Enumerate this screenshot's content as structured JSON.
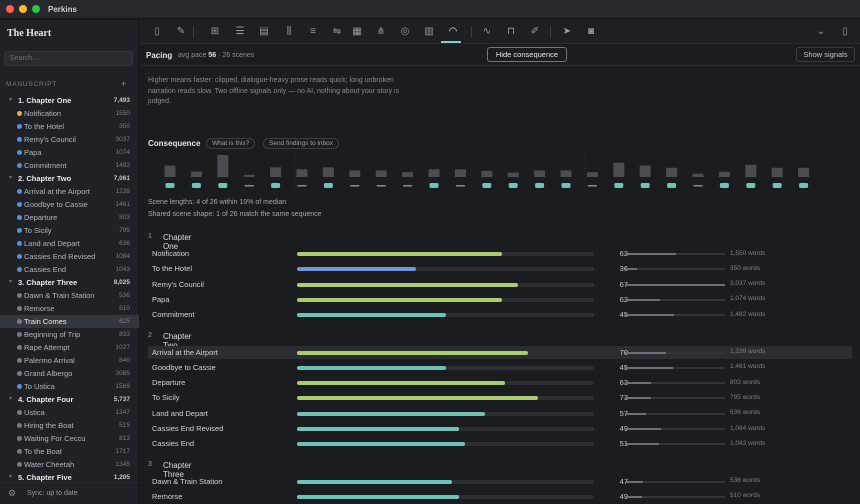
{
  "app": {
    "title": "Perkins"
  },
  "sidebar": {
    "book_title": "The Heart",
    "search_placeholder": "Search…",
    "section_label": "MANUSCRIPT",
    "add_label": "+",
    "footer": {
      "sync_text": "Sync: up to date"
    },
    "items": [
      {
        "type": "chapter",
        "label": "1. Chapter One",
        "count": "7,493"
      },
      {
        "type": "scene",
        "label": "Notification",
        "count": "1550",
        "dot": "#e2b34d"
      },
      {
        "type": "scene",
        "label": "To the Hotel",
        "count": "350",
        "dot": "#5b8fd6"
      },
      {
        "type": "scene",
        "label": "Remy's Council",
        "count": "3037",
        "dot": "#5b8fd6"
      },
      {
        "type": "scene",
        "label": "Papa",
        "count": "1074",
        "dot": "#5b8fd6"
      },
      {
        "type": "scene",
        "label": "Commitment",
        "count": "1482",
        "dot": "#5b8fd6"
      },
      {
        "type": "chapter",
        "label": "2. Chapter Two",
        "count": "7,061"
      },
      {
        "type": "scene",
        "label": "Arrival at the Airport",
        "count": "1239",
        "dot": "#5b8fd6"
      },
      {
        "type": "scene",
        "label": "Goodbye to Cassie",
        "count": "1461",
        "dot": "#5b8fd6"
      },
      {
        "type": "scene",
        "label": "Departure",
        "count": "803",
        "dot": "#5b8fd6"
      },
      {
        "type": "scene",
        "label": "To Sicily",
        "count": "795",
        "dot": "#5b8fd6"
      },
      {
        "type": "scene",
        "label": "Land and Depart",
        "count": "636",
        "dot": "#5b8fd6"
      },
      {
        "type": "scene",
        "label": "Cassies End Revised",
        "count": "1084",
        "dot": "#5b8fd6"
      },
      {
        "type": "scene",
        "label": "Cassies End",
        "count": "1043",
        "dot": "#5b8fd6"
      },
      {
        "type": "chapter",
        "label": "3. Chapter Three",
        "count": "8,025"
      },
      {
        "type": "scene",
        "label": "Dawn & Train Station",
        "count": "536",
        "dot": "#7a7b82"
      },
      {
        "type": "scene",
        "label": "Remorse",
        "count": "510",
        "dot": "#7a7b82"
      },
      {
        "type": "scene",
        "label": "Train Comes",
        "count": "625",
        "dot": "#7a7b82",
        "selected": true
      },
      {
        "type": "scene",
        "label": "Beginning of Trip",
        "count": "833",
        "dot": "#7a7b82"
      },
      {
        "type": "scene",
        "label": "Rape Attempt",
        "count": "1027",
        "dot": "#7a7b82"
      },
      {
        "type": "scene",
        "label": "Palermo Arrival",
        "count": "840",
        "dot": "#7a7b82"
      },
      {
        "type": "scene",
        "label": "Grand Albergo",
        "count": "2085",
        "dot": "#7a7b82"
      },
      {
        "type": "scene",
        "label": "To Ustica",
        "count": "1569",
        "dot": "#5b8fd6"
      },
      {
        "type": "chapter",
        "label": "4. Chapter Four",
        "count": "5,737"
      },
      {
        "type": "scene",
        "label": "Ustica",
        "count": "1347",
        "dot": "#7a7b82"
      },
      {
        "type": "scene",
        "label": "Hiring the Boat",
        "count": "515",
        "dot": "#7a7b82"
      },
      {
        "type": "scene",
        "label": "Waiting For Ceccu",
        "count": "813",
        "dot": "#7a7b82"
      },
      {
        "type": "scene",
        "label": "To the Boat",
        "count": "1717",
        "dot": "#7a7b82"
      },
      {
        "type": "scene",
        "label": "Water Cheetah",
        "count": "1345",
        "dot": "#7a7b82"
      },
      {
        "type": "chapter",
        "label": "5. Chapter Five",
        "count": "1,205"
      }
    ]
  },
  "toolbar": {
    "icons": [
      "sidebar-toggle-icon",
      "pen-icon",
      "grid-icon",
      "outline-list-icon",
      "document-icon",
      "library-icon",
      "align-icon",
      "balance-icon",
      "table-icon",
      "hierarchy-icon",
      "target-icon",
      "bar-chart-icon",
      "pacing-gauge-icon",
      "pulse-icon",
      "inbox-icon",
      "feather-icon",
      "send-icon",
      "camera-icon",
      "chevron-down-icon",
      "panel-right-icon"
    ]
  },
  "subbar": {
    "title": "Pacing",
    "meta_prefix": "avg pace",
    "avg_pace": "56",
    "meta_suffix": "· 26 scenes",
    "hide_button": "Hide consequence",
    "show_button": "Show signals"
  },
  "main": {
    "description": "Higher means faster: clipped, dialogue-heavy prose reads quick; long unbroken narration reads slow. Two offline signals only — no AI, nothing about your story is judged.",
    "consequence": {
      "title": "Consequence",
      "what_btn": "What is this?",
      "send_btn": "Send findings to inbox"
    },
    "note_lengths": "Scene lengths: 4 of 26 within 10% of median",
    "note_shape": "Shared scene shape: 1 of 26 match the same sequence",
    "strip": [
      {
        "bar": 0.52,
        "mark": "pill"
      },
      {
        "bar": 0.25,
        "mark": "pill"
      },
      {
        "bar": 1.0,
        "mark": "pill"
      },
      {
        "bar": 0.1,
        "mark": "dash"
      },
      {
        "bar": 0.44,
        "mark": "pill"
      },
      {
        "bar": 0.35,
        "mark": "dash"
      },
      {
        "bar": 0.44,
        "mark": "pill"
      },
      {
        "bar": 0.3,
        "mark": "dash"
      },
      {
        "bar": 0.3,
        "mark": "dash"
      },
      {
        "bar": 0.22,
        "mark": "dash"
      },
      {
        "bar": 0.35,
        "mark": "pill"
      },
      {
        "bar": 0.35,
        "mark": "dash"
      },
      {
        "bar": 0.28,
        "mark": "pill"
      },
      {
        "bar": 0.2,
        "mark": "pill"
      },
      {
        "bar": 0.3,
        "mark": "pill"
      },
      {
        "bar": 0.3,
        "mark": "pill"
      },
      {
        "bar": 0.22,
        "mark": "dash"
      },
      {
        "bar": 0.65,
        "mark": "pill"
      },
      {
        "bar": 0.52,
        "mark": "pill"
      },
      {
        "bar": 0.42,
        "mark": "pill"
      },
      {
        "bar": 0.15,
        "mark": "dash"
      },
      {
        "bar": 0.24,
        "mark": "pill"
      },
      {
        "bar": 0.55,
        "mark": "pill"
      },
      {
        "bar": 0.42,
        "mark": "pill"
      },
      {
        "bar": 0.42,
        "mark": "pill"
      },
      {
        "bar": 0.0,
        "mark": "none"
      }
    ],
    "colors": {
      "green": "#a8cf6b",
      "blue": "#6e97d8",
      "teal": "#6fc2b6"
    },
    "chapters": [
      {
        "num": "1",
        "title": "Chapter One",
        "scenes": [
          {
            "name": "Notification",
            "score": 62,
            "words": "1,550 words",
            "color": "green",
            "meter": 0.51
          },
          {
            "name": "To the Hotel",
            "score": 36,
            "words": "350 words",
            "color": "blue",
            "meter": 0.12
          },
          {
            "name": "Remy's Council",
            "score": 67,
            "words": "3,037 words",
            "color": "green",
            "meter": 1.0
          },
          {
            "name": "Papa",
            "score": 62,
            "words": "1,074 words",
            "color": "green",
            "meter": 0.35
          },
          {
            "name": "Commitment",
            "score": 45,
            "words": "1,482 words",
            "color": "teal",
            "meter": 0.49
          }
        ]
      },
      {
        "num": "2",
        "title": "Chapter Two",
        "scenes": [
          {
            "name": "Arrival at the Airport",
            "score": 70,
            "words": "1,239 words",
            "color": "green",
            "meter": 0.41,
            "highlight": true
          },
          {
            "name": "Goodbye to Cassie",
            "score": 45,
            "words": "1,461 words",
            "color": "teal",
            "meter": 0.48
          },
          {
            "name": "Departure",
            "score": 63,
            "words": "803 words",
            "color": "green",
            "meter": 0.26
          },
          {
            "name": "To Sicily",
            "score": 73,
            "words": "795 words",
            "color": "green",
            "meter": 0.26
          },
          {
            "name": "Land and Depart",
            "score": 57,
            "words": "636 words",
            "color": "teal",
            "meter": 0.21
          },
          {
            "name": "Cassies End Revised",
            "score": 49,
            "words": "1,084 words",
            "color": "teal",
            "meter": 0.36
          },
          {
            "name": "Cassies End",
            "score": 51,
            "words": "1,043 words",
            "color": "teal",
            "meter": 0.34
          }
        ]
      },
      {
        "num": "3",
        "title": "Chapter Three",
        "scenes": [
          {
            "name": "Dawn & Train Station",
            "score": 47,
            "words": "536 words",
            "color": "teal",
            "meter": 0.18
          },
          {
            "name": "Remorse",
            "score": 49,
            "words": "510 words",
            "color": "teal",
            "meter": 0.17
          }
        ]
      }
    ]
  }
}
